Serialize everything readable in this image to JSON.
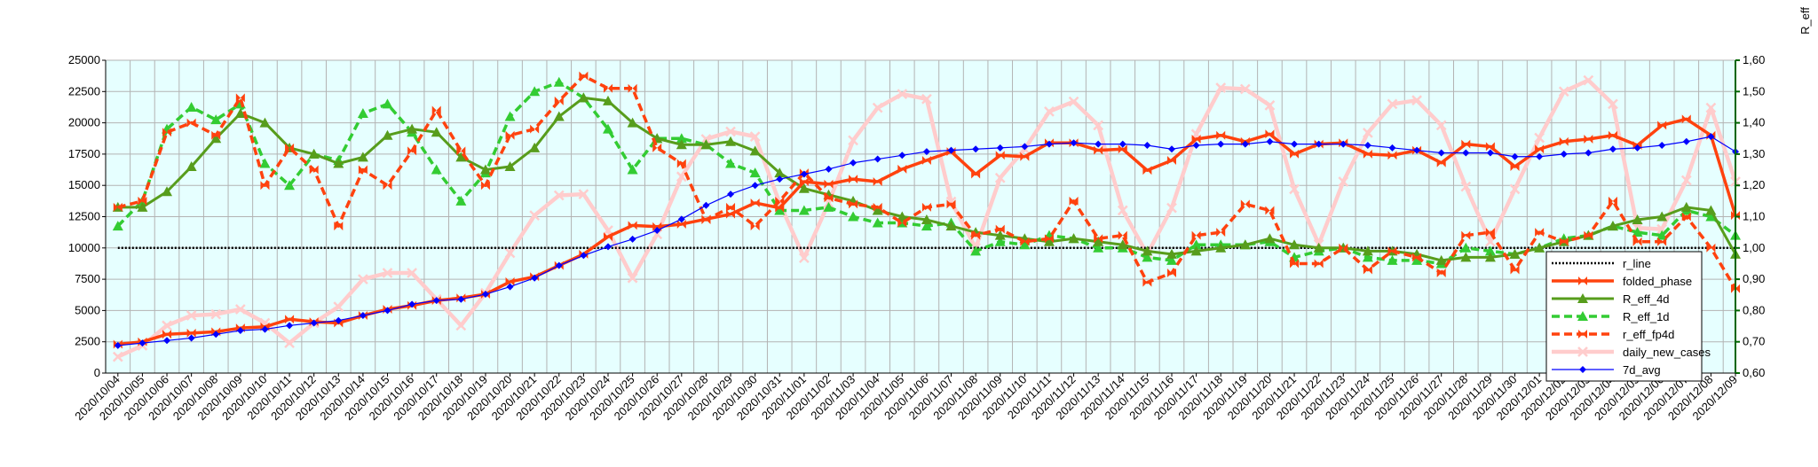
{
  "chart_data": {
    "type": "line",
    "title": "",
    "xlabel": "",
    "ylabel": "",
    "y2label": "R_eff",
    "ylim": [
      0,
      25000
    ],
    "y2lim": [
      0.6,
      1.6
    ],
    "yticks": [
      "0",
      "2500",
      "5000",
      "7500",
      "10000",
      "12500",
      "15000",
      "17500",
      "20000",
      "22500",
      "25000"
    ],
    "y2ticks": [
      "0,60",
      "0,70",
      "0,80",
      "0,90",
      "1,00",
      "1,10",
      "1,20",
      "1,30",
      "1,40",
      "1,50",
      "1,60"
    ],
    "grid": true,
    "legend_position": "bottom-right",
    "colors": {
      "plot_bg": "#E6FFFF",
      "grid": "#B3B3B3",
      "r_line": "#000000",
      "folded_phase": "#FF420E",
      "R_eff_4d": "#579D1C",
      "R_eff_1d": "#33CC33",
      "r_eff_fp4d": "#FF420E",
      "daily_new_cases": "#FFCCCC",
      "7d_avg": "#0000FF",
      "right_axis": "#006600"
    },
    "categories": [
      "2020/10/04",
      "2020/10/05",
      "2020/10/06",
      "2020/10/07",
      "2020/10/08",
      "2020/10/09",
      "2020/10/10",
      "2020/10/11",
      "2020/10/12",
      "2020/10/13",
      "2020/10/14",
      "2020/10/15",
      "2020/10/16",
      "2020/10/17",
      "2020/10/18",
      "2020/10/19",
      "2020/10/20",
      "2020/10/21",
      "2020/10/22",
      "2020/10/23",
      "2020/10/24",
      "2020/10/25",
      "2020/10/26",
      "2020/10/27",
      "2020/10/28",
      "2020/10/29",
      "2020/10/30",
      "2020/10/31",
      "2020/11/01",
      "2020/11/02",
      "2020/11/03",
      "2020/11/04",
      "2020/11/05",
      "2020/11/06",
      "2020/11/07",
      "2020/11/08",
      "2020/11/09",
      "2020/11/10",
      "2020/11/11",
      "2020/11/12",
      "2020/11/13",
      "2020/11/14",
      "2020/11/15",
      "2020/11/16",
      "2020/11/17",
      "2020/11/18",
      "2020/11/19",
      "2020/11/20",
      "2020/11/21",
      "2020/11/22",
      "2020/11/23",
      "2020/11/24",
      "2020/11/25",
      "2020/11/26",
      "2020/11/27",
      "2020/11/28",
      "2020/11/29",
      "2020/11/30",
      "2020/12/01",
      "2020/12/02",
      "2020/12/03",
      "2020/12/04",
      "2020/12/05",
      "2020/12/06",
      "2020/12/07",
      "2020/12/08",
      "2020/12/09"
    ],
    "series": [
      {
        "name": "r_line",
        "axis": "right",
        "style": "dotted",
        "marker": "none",
        "values": [
          1.0,
          1.0,
          1.0,
          1.0,
          1.0,
          1.0,
          1.0,
          1.0,
          1.0,
          1.0,
          1.0,
          1.0,
          1.0,
          1.0,
          1.0,
          1.0,
          1.0,
          1.0,
          1.0,
          1.0,
          1.0,
          1.0,
          1.0,
          1.0,
          1.0,
          1.0,
          1.0,
          1.0,
          1.0,
          1.0,
          1.0,
          1.0,
          1.0,
          1.0,
          1.0,
          1.0,
          1.0,
          1.0,
          1.0,
          1.0,
          1.0,
          1.0,
          1.0,
          1.0,
          1.0,
          1.0,
          1.0,
          1.0,
          1.0,
          1.0,
          1.0,
          1.0,
          1.0,
          1.0,
          1.0,
          1.0,
          1.0,
          1.0,
          1.0,
          1.0,
          1.0,
          1.0,
          1.0,
          1.0,
          1.0,
          1.0,
          1.0
        ]
      },
      {
        "name": "folded_phase",
        "axis": "left",
        "style": "solid",
        "marker": "bowtie",
        "values": [
          2300,
          2500,
          3100,
          3200,
          3300,
          3600,
          3700,
          4300,
          4100,
          4000,
          4600,
          5100,
          5400,
          5800,
          6000,
          6300,
          7300,
          7700,
          8600,
          9500,
          10900,
          11800,
          11700,
          11900,
          12300,
          12700,
          13600,
          13200,
          15300,
          15100,
          15500,
          15300,
          16300,
          17000,
          17700,
          15900,
          17400,
          17300,
          18400,
          18400,
          17800,
          17900,
          16200,
          17000,
          18700,
          19000,
          18500,
          19100,
          17500,
          18300,
          18400,
          17500,
          17400,
          17800,
          16800,
          18300,
          18100,
          16500,
          17900,
          18500,
          18700,
          19000,
          18200,
          19800,
          20300,
          19000,
          12600
        ]
      },
      {
        "name": "R_eff_4d",
        "axis": "right",
        "style": "solid",
        "marker": "triangle",
        "values": [
          1.13,
          1.13,
          1.18,
          1.26,
          1.35,
          1.43,
          1.4,
          1.32,
          1.3,
          1.27,
          1.29,
          1.36,
          1.38,
          1.37,
          1.29,
          1.25,
          1.26,
          1.32,
          1.42,
          1.48,
          1.47,
          1.4,
          1.35,
          1.33,
          1.33,
          1.34,
          1.31,
          1.24,
          1.19,
          1.17,
          1.15,
          1.12,
          1.1,
          1.09,
          1.07,
          1.05,
          1.04,
          1.03,
          1.02,
          1.03,
          1.02,
          1.01,
          0.99,
          0.98,
          0.99,
          1.0,
          1.01,
          1.03,
          1.01,
          1.0,
          1.0,
          0.99,
          0.99,
          0.98,
          0.96,
          0.97,
          0.97,
          0.98,
          1.0,
          1.02,
          1.04,
          1.07,
          1.09,
          1.1,
          1.13,
          1.12,
          0.98
        ]
      },
      {
        "name": "R_eff_1d",
        "axis": "right",
        "style": "dashed",
        "marker": "triangle",
        "values": [
          1.07,
          1.15,
          1.38,
          1.45,
          1.41,
          1.46,
          1.27,
          1.2,
          1.3,
          1.28,
          1.43,
          1.46,
          1.37,
          1.25,
          1.15,
          1.24,
          1.42,
          1.5,
          1.53,
          1.48,
          1.38,
          1.25,
          1.35,
          1.35,
          1.33,
          1.27,
          1.24,
          1.12,
          1.12,
          1.13,
          1.1,
          1.08,
          1.08,
          1.07,
          1.08,
          0.99,
          1.02,
          1.01,
          1.04,
          1.03,
          1.0,
          1.0,
          0.97,
          0.96,
          1.01,
          1.01,
          1.01,
          1.02,
          0.97,
          0.99,
          1.0,
          0.97,
          0.96,
          0.96,
          0.95,
          1.0,
          0.99,
          0.98,
          1.0,
          1.03,
          1.04,
          1.07,
          1.05,
          1.04,
          1.12,
          1.1,
          1.04
        ]
      },
      {
        "name": "r_eff_fp4d",
        "axis": "right",
        "style": "dashed",
        "marker": "bowtie",
        "values": [
          1.13,
          1.15,
          1.37,
          1.4,
          1.36,
          1.48,
          1.2,
          1.32,
          1.25,
          1.07,
          1.25,
          1.2,
          1.31,
          1.44,
          1.31,
          1.2,
          1.36,
          1.38,
          1.47,
          1.55,
          1.51,
          1.51,
          1.32,
          1.27,
          1.09,
          1.13,
          1.07,
          1.15,
          1.24,
          1.16,
          1.14,
          1.13,
          1.08,
          1.13,
          1.14,
          1.04,
          1.06,
          1.02,
          1.03,
          1.15,
          1.03,
          1.04,
          0.89,
          0.92,
          1.04,
          1.05,
          1.14,
          1.12,
          0.95,
          0.95,
          1.0,
          0.93,
          0.99,
          0.97,
          0.92,
          1.04,
          1.05,
          0.93,
          1.05,
          1.02,
          1.04,
          1.15,
          1.02,
          1.02,
          1.1,
          1.0,
          0.87
        ]
      },
      {
        "name": "daily_new_cases",
        "axis": "left",
        "style": "solid",
        "marker": "cross",
        "values": [
          1300,
          2200,
          3800,
          4600,
          4700,
          5100,
          4000,
          2400,
          4000,
          5300,
          7500,
          8000,
          8000,
          5900,
          3800,
          6400,
          9600,
          12600,
          14200,
          14300,
          11400,
          7600,
          11100,
          15700,
          18700,
          19300,
          18900,
          13600,
          9200,
          13600,
          18600,
          21200,
          22300,
          21900,
          13700,
          10000,
          15600,
          17900,
          20900,
          21700,
          19800,
          13000,
          9500,
          13200,
          19100,
          22800,
          22700,
          21400,
          14700,
          10300,
          15300,
          19200,
          21500,
          21800,
          19800,
          14900,
          10500,
          14700,
          18800,
          22500,
          23400,
          21500,
          11600,
          11500,
          15400,
          21200,
          15300
        ]
      },
      {
        "name": "7d_avg",
        "axis": "left",
        "style": "solid",
        "marker": "diamond",
        "values": [
          2200,
          2400,
          2600,
          2800,
          3100,
          3400,
          3500,
          3800,
          4000,
          4200,
          4600,
          5000,
          5500,
          5800,
          5900,
          6300,
          6900,
          7600,
          8600,
          9400,
          10100,
          10700,
          11400,
          12300,
          13400,
          14300,
          15000,
          15500,
          15900,
          16300,
          16800,
          17100,
          17400,
          17700,
          17800,
          17900,
          18000,
          18100,
          18300,
          18400,
          18300,
          18300,
          18200,
          17900,
          18200,
          18300,
          18300,
          18500,
          18300,
          18300,
          18300,
          18200,
          18000,
          17800,
          17600,
          17600,
          17600,
          17300,
          17300,
          17500,
          17600,
          17900,
          18000,
          18200,
          18500,
          18900,
          17700
        ]
      }
    ]
  }
}
